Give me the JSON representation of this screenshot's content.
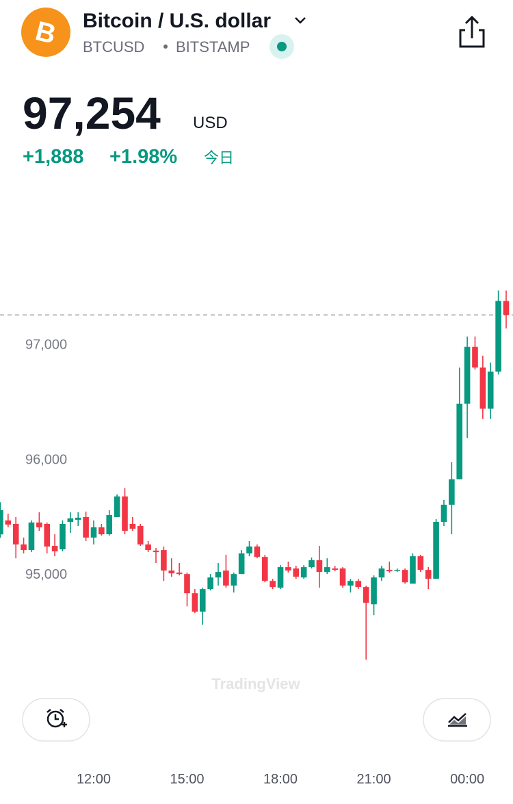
{
  "header": {
    "title": "Bitcoin / U.S. dollar",
    "symbol": "BTCUSD",
    "exchange": "BITSTAMP",
    "price": "97,254",
    "currency": "USD",
    "change": "+1,888",
    "change_pct": "+1.98%",
    "period": "今日"
  },
  "chart_data": {
    "type": "candlestick",
    "watermark": "TradingView",
    "up_color": "#089981",
    "down_color": "#f23645",
    "price_line": 97254,
    "xlim": [
      8.99,
      25.47
    ],
    "ylim": [
      93440,
      97730
    ],
    "xticks": [
      {
        "value": 12,
        "label": "12:00"
      },
      {
        "value": 15,
        "label": "15:00"
      },
      {
        "value": 18,
        "label": "18:00"
      },
      {
        "value": 21,
        "label": "21:00"
      },
      {
        "value": 24,
        "label": "00:00"
      }
    ],
    "yticks": [
      {
        "value": 95000,
        "label": "95,000"
      },
      {
        "value": 96000,
        "label": "96,000"
      },
      {
        "value": 97000,
        "label": "97,000"
      }
    ],
    "x": [
      9,
      9.25,
      9.5,
      9.75,
      10,
      10.25,
      10.5,
      10.75,
      11,
      11.25,
      11.5,
      11.75,
      12,
      12.25,
      12.5,
      12.75,
      13,
      13.25,
      13.5,
      13.75,
      14,
      14.25,
      14.5,
      14.75,
      15,
      15.25,
      15.5,
      15.75,
      16,
      16.25,
      16.5,
      16.75,
      17,
      17.25,
      17.5,
      17.75,
      18,
      18.25,
      18.5,
      18.75,
      19,
      19.25,
      19.5,
      19.75,
      20,
      20.25,
      20.5,
      20.75,
      21,
      21.25,
      21.5,
      21.75,
      22,
      22.25,
      22.5,
      22.75,
      23,
      23.25,
      23.5,
      23.75,
      24,
      24.25,
      24.5,
      24.75,
      25,
      25.25
    ],
    "open": [
      95345,
      95466,
      95436,
      95257,
      95209,
      95448,
      95436,
      95245,
      95215,
      95454,
      95472,
      95496,
      95317,
      95406,
      95346,
      95496,
      95675,
      95436,
      95418,
      95257,
      95203,
      95209,
      95030,
      95012,
      95000,
      94833,
      94672,
      94869,
      94970,
      95030,
      94899,
      95000,
      95179,
      95239,
      95149,
      94940,
      94881,
      95060,
      95048,
      94970,
      95060,
      95120,
      95018,
      95048,
      95048,
      94899,
      94940,
      94887,
      94737,
      94970,
      95036,
      95030,
      95036,
      94916,
      95155,
      95036,
      94958,
      95454,
      95603,
      95824,
      96481,
      96976,
      96797,
      96439,
      96761,
      97376
    ],
    "high": [
      95625,
      95525,
      95496,
      95317,
      95466,
      95537,
      95448,
      95346,
      95466,
      95537,
      95537,
      95543,
      95466,
      95436,
      95555,
      95693,
      95746,
      95496,
      95436,
      95287,
      95227,
      95239,
      95137,
      95096,
      95012,
      94869,
      94881,
      95000,
      95096,
      95167,
      95012,
      95209,
      95287,
      95257,
      95167,
      94958,
      95078,
      95108,
      95072,
      95078,
      95143,
      95245,
      95137,
      95072,
      95060,
      94958,
      94958,
      94899,
      94988,
      95072,
      95108,
      95048,
      95048,
      95179,
      95167,
      95060,
      95478,
      95645,
      95973,
      96797,
      97066,
      97066,
      96899,
      96839,
      97466,
      97466
    ],
    "low": [
      95315,
      95406,
      95137,
      95179,
      95191,
      95376,
      95179,
      95155,
      95197,
      95358,
      95418,
      95287,
      95257,
      95334,
      95334,
      95496,
      95346,
      95376,
      95245,
      95191,
      95096,
      94940,
      94976,
      94988,
      94719,
      94660,
      94558,
      94857,
      94899,
      94881,
      94839,
      95000,
      95155,
      95137,
      94928,
      94869,
      94869,
      95012,
      94958,
      94958,
      95048,
      94881,
      95000,
      95024,
      94881,
      94839,
      94869,
      94254,
      94642,
      94940,
      95012,
      95018,
      94916,
      94916,
      95018,
      94869,
      94958,
      95418,
      95346,
      95824,
      96182,
      96779,
      96349,
      96349,
      96737,
      97137
    ],
    "close": [
      95555,
      95430,
      95257,
      95209,
      95448,
      95406,
      95239,
      95197,
      95436,
      95484,
      95490,
      95317,
      95406,
      95346,
      95513,
      95675,
      95376,
      95394,
      95257,
      95209,
      95191,
      95030,
      95006,
      95000,
      94833,
      94672,
      94869,
      94970,
      95018,
      94899,
      95000,
      95179,
      95239,
      95149,
      94940,
      94887,
      95060,
      95030,
      94976,
      95060,
      95120,
      95018,
      95060,
      95036,
      94899,
      94940,
      94887,
      94749,
      94970,
      95048,
      95024,
      95036,
      94928,
      95155,
      95036,
      94958,
      95454,
      95603,
      95824,
      96481,
      96976,
      96797,
      96439,
      96761,
      97376,
      97254
    ]
  }
}
